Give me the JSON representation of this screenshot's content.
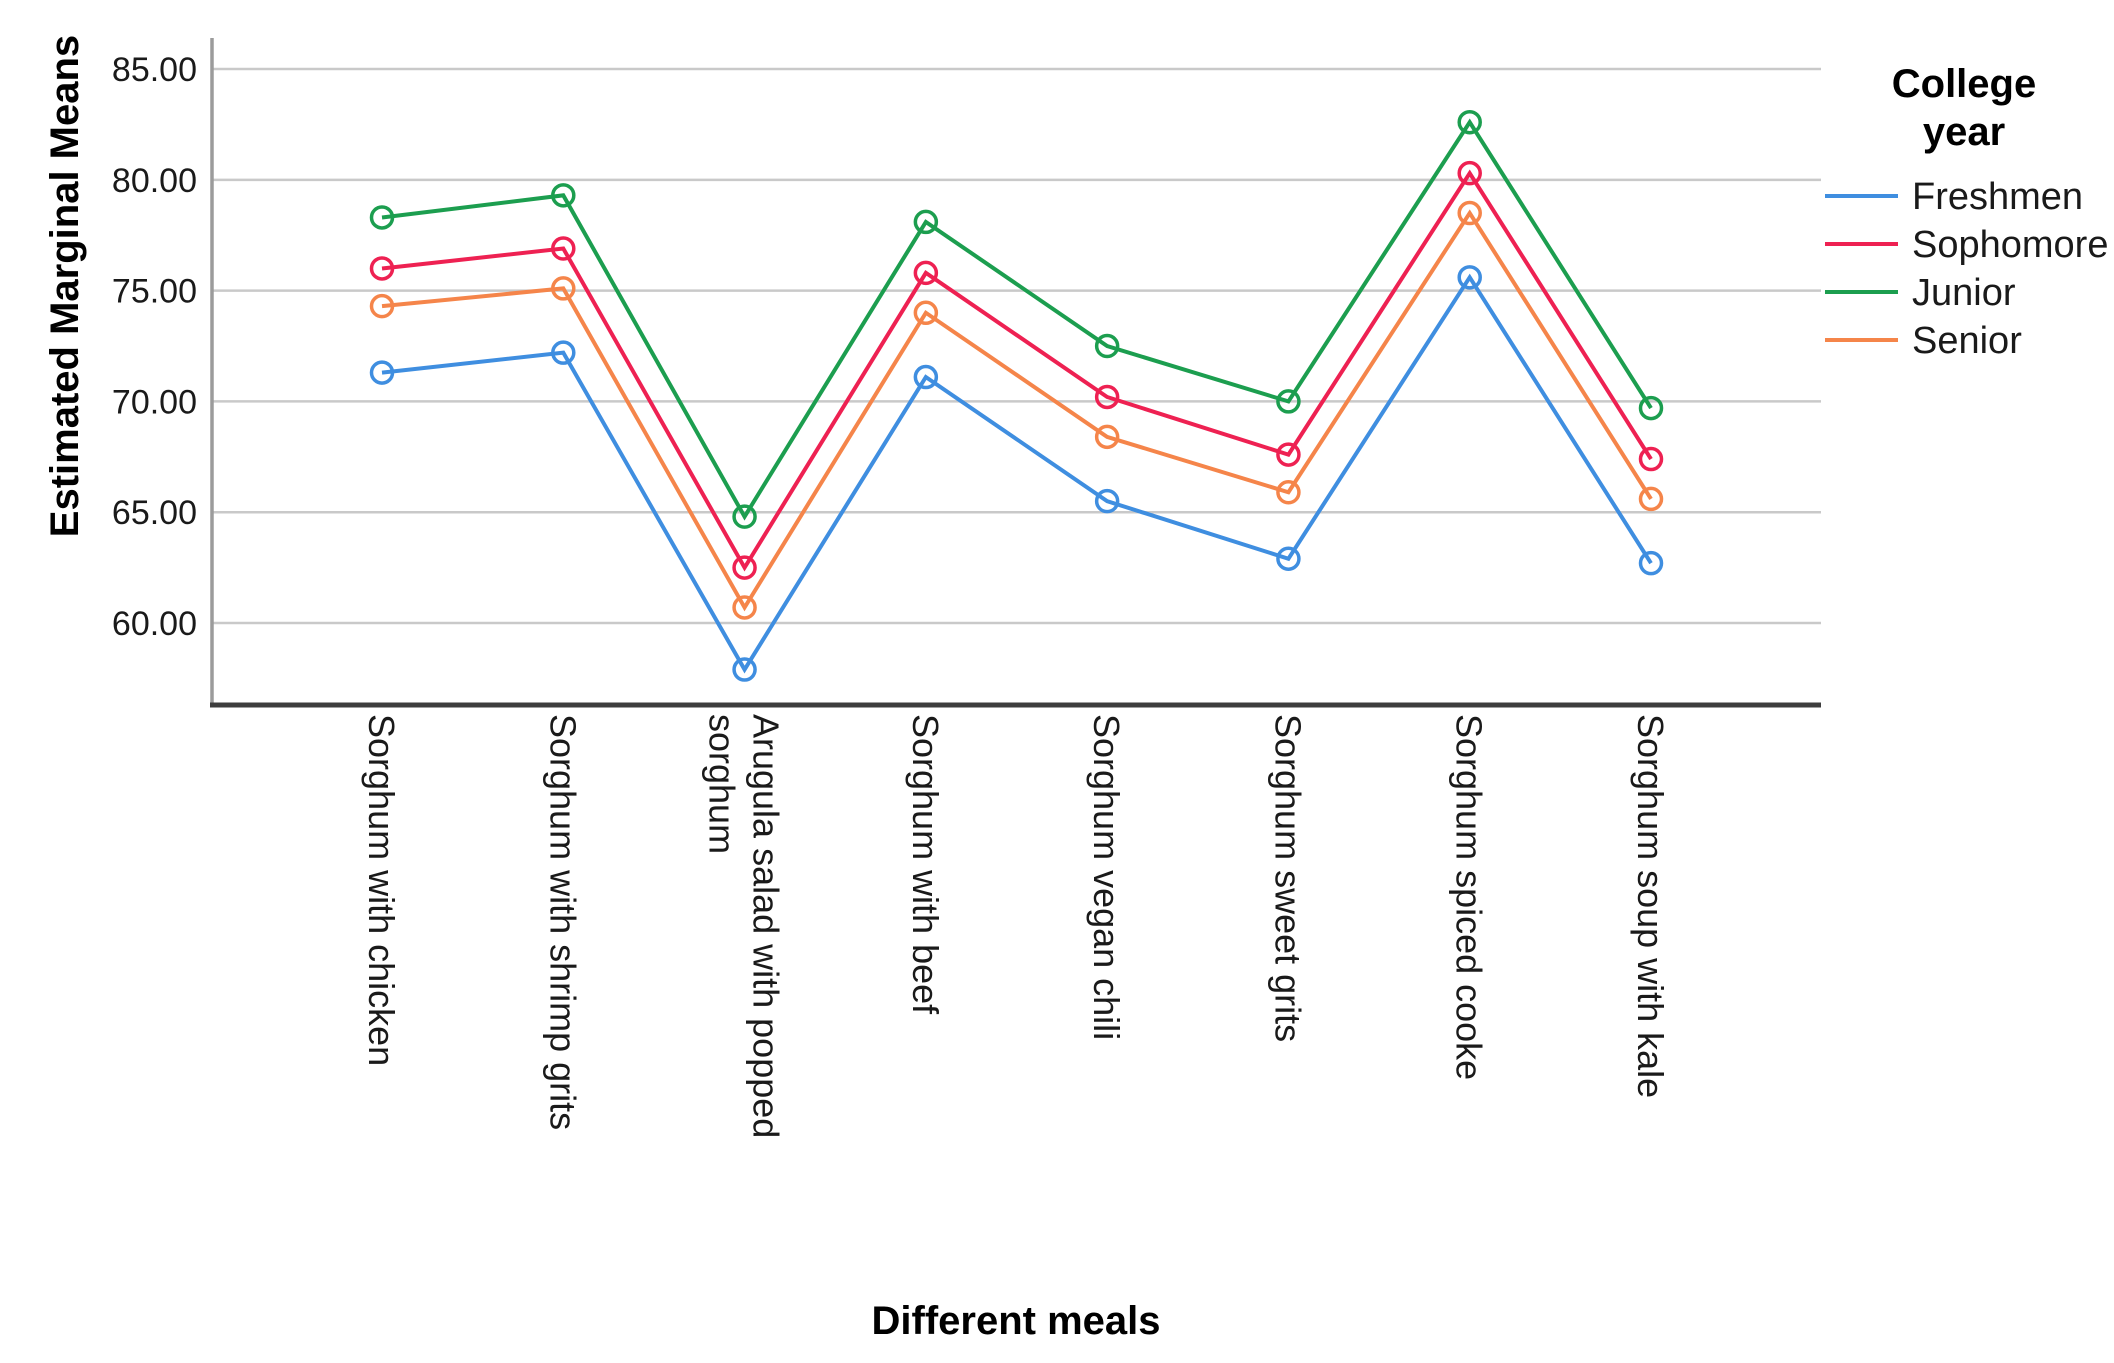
{
  "chart_data": {
    "type": "line",
    "title": "",
    "xlabel": "Different meals",
    "ylabel": "Estimated Marginal Means",
    "grid": "horizontal",
    "marker": "open-circle",
    "legend": {
      "title": "College year",
      "position": "right"
    },
    "categories": [
      "Sorghum with chicken",
      "Sorghum with shrimp grits",
      "Arugula salad with popped sorghum",
      "Sorghum with beef",
      "Sorghum vegan chili",
      "Sorghum sweet grits",
      "Sorghum spiced cooke",
      "Sorghum soup with kale"
    ],
    "series": [
      {
        "name": "Freshmen",
        "color": "#3F8EE0",
        "values": [
          71.3,
          72.2,
          57.9,
          71.1,
          65.5,
          62.9,
          75.6,
          62.7
        ]
      },
      {
        "name": "Sophomore",
        "color": "#EE2152",
        "values": [
          76.0,
          76.9,
          62.5,
          75.8,
          70.2,
          67.6,
          80.3,
          67.4
        ]
      },
      {
        "name": "Junior",
        "color": "#1C9E4F",
        "values": [
          78.3,
          79.3,
          64.8,
          78.1,
          72.5,
          70.0,
          82.6,
          69.7
        ]
      },
      {
        "name": "Senior",
        "color": "#F5854A",
        "values": [
          74.3,
          75.1,
          60.7,
          74.0,
          68.4,
          65.9,
          78.5,
          65.6
        ]
      }
    ],
    "ytick_labels": [
      "85.00",
      "80.00",
      "75.00",
      "70.00",
      "65.00",
      "60.00"
    ],
    "ylim": [
      56.3,
      86.4
    ]
  },
  "colors": {
    "y_axis_line": "#9B9B9B",
    "x_axis_line": "#3D3D3D",
    "gridline": "#C9C9C9",
    "text": "#1a1a1a",
    "background": "#ffffff"
  }
}
